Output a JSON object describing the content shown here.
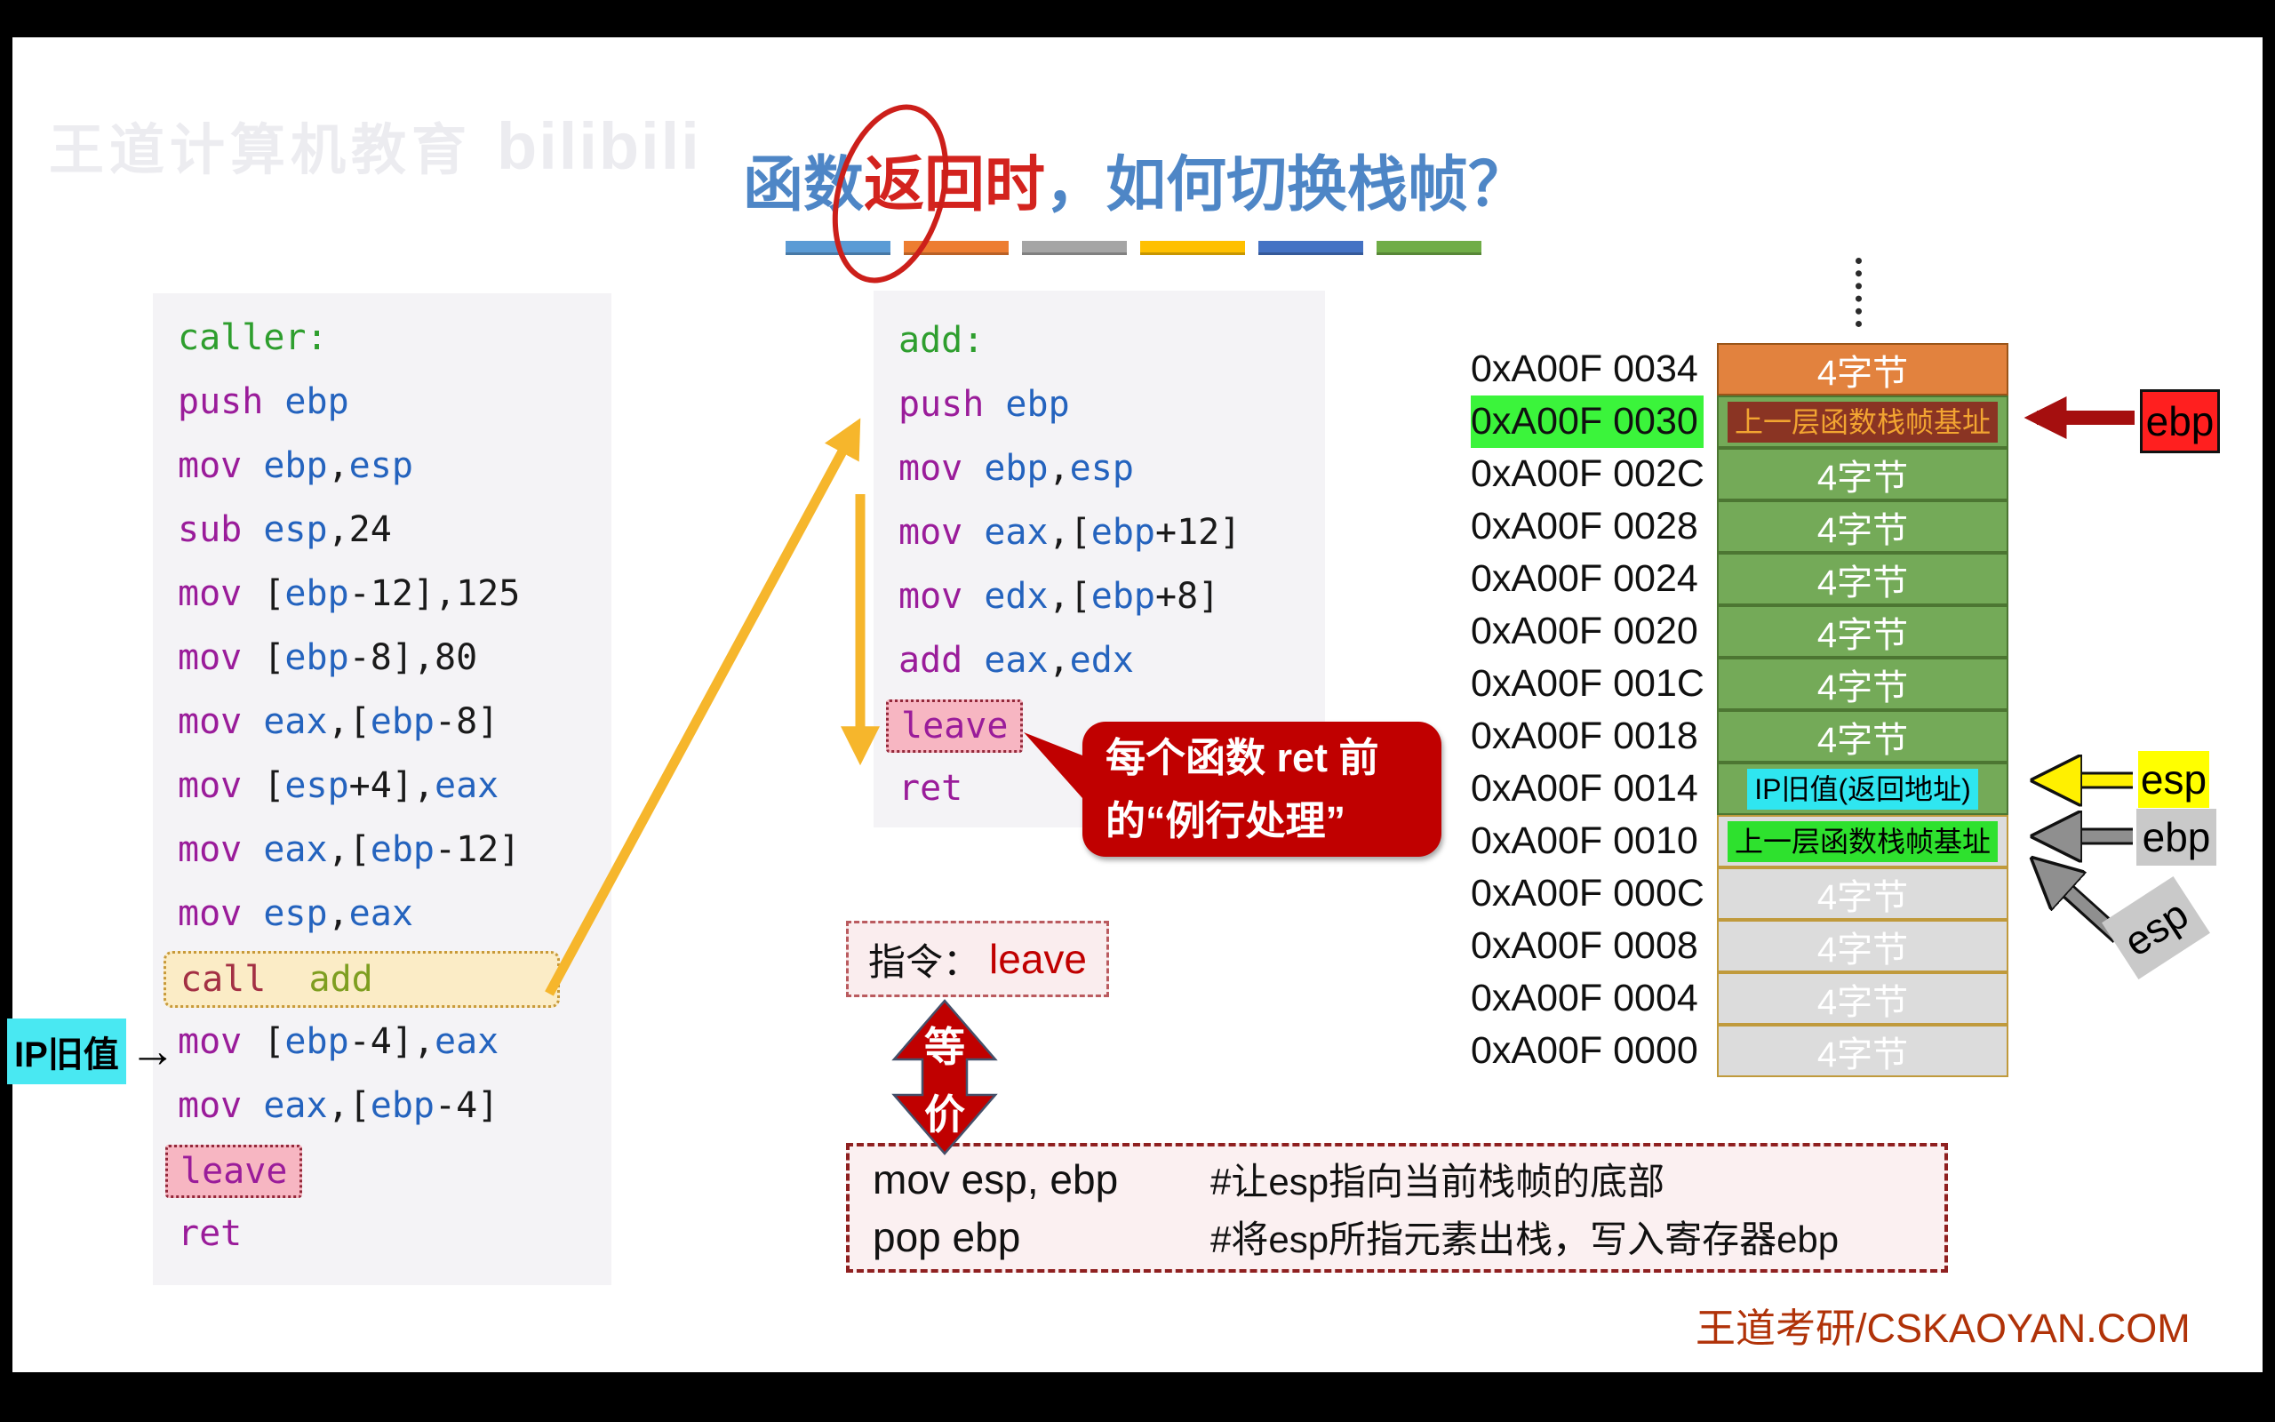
{
  "watermark": {
    "brand": "王道计算机教育",
    "logo": "bilibili"
  },
  "title": {
    "pre": "函数",
    "highlight": "返回时",
    "post": "，如何切换栈帧？"
  },
  "decor_bar_colors": [
    "#5B9BD5",
    "#ED7D31",
    "#A5A5A5",
    "#FFC000",
    "#4472C4",
    "#70AD47"
  ],
  "caller_code": {
    "lines": [
      {
        "tokens": [
          [
            "lbl",
            "caller:"
          ]
        ]
      },
      {
        "tokens": [
          [
            "k",
            "push "
          ],
          [
            "r",
            "ebp"
          ]
        ]
      },
      {
        "tokens": [
          [
            "k",
            "mov "
          ],
          [
            "r",
            "ebp"
          ],
          [
            "n",
            ","
          ],
          [
            "r",
            "esp"
          ]
        ]
      },
      {
        "tokens": [
          [
            "k",
            "sub "
          ],
          [
            "r",
            "esp"
          ],
          [
            "n",
            ",24"
          ]
        ]
      },
      {
        "tokens": [
          [
            "k",
            "mov "
          ],
          [
            "n",
            "["
          ],
          [
            "r",
            "ebp"
          ],
          [
            "n",
            "-12],125"
          ]
        ]
      },
      {
        "tokens": [
          [
            "k",
            "mov "
          ],
          [
            "n",
            "["
          ],
          [
            "r",
            "ebp"
          ],
          [
            "n",
            "-8],80"
          ]
        ]
      },
      {
        "tokens": [
          [
            "k",
            "mov "
          ],
          [
            "r",
            "eax"
          ],
          [
            "n",
            ",["
          ],
          [
            "r",
            "ebp"
          ],
          [
            "n",
            "-8]"
          ]
        ]
      },
      {
        "tokens": [
          [
            "k",
            "mov "
          ],
          [
            "n",
            "["
          ],
          [
            "r",
            "esp"
          ],
          [
            "n",
            "+4],"
          ],
          [
            "r",
            "eax"
          ]
        ]
      },
      {
        "tokens": [
          [
            "k",
            "mov "
          ],
          [
            "r",
            "eax"
          ],
          [
            "n",
            ",["
          ],
          [
            "r",
            "ebp"
          ],
          [
            "n",
            "-12]"
          ]
        ]
      },
      {
        "tokens": [
          [
            "k",
            "mov "
          ],
          [
            "r",
            "esp"
          ],
          [
            "n",
            ","
          ],
          [
            "r",
            "eax"
          ]
        ]
      },
      {
        "hl": "call",
        "tokens": [
          [
            "call",
            "call"
          ],
          [
            "n",
            "  "
          ],
          [
            "fn",
            "add"
          ]
        ]
      },
      {
        "tokens": [
          [
            "k",
            "mov "
          ],
          [
            "n",
            "["
          ],
          [
            "r",
            "ebp"
          ],
          [
            "n",
            "-4],"
          ],
          [
            "r",
            "eax"
          ]
        ]
      },
      {
        "tokens": [
          [
            "k",
            "mov "
          ],
          [
            "r",
            "eax"
          ],
          [
            "n",
            ",["
          ],
          [
            "r",
            "ebp"
          ],
          [
            "n",
            "-4]"
          ]
        ]
      },
      {
        "hl": "leave",
        "tokens": [
          [
            "k",
            "leave"
          ]
        ]
      },
      {
        "tokens": [
          [
            "k",
            "ret"
          ]
        ]
      }
    ]
  },
  "add_code": {
    "lines": [
      {
        "tokens": [
          [
            "lbl",
            "add:"
          ]
        ]
      },
      {
        "tokens": [
          [
            "k",
            "push "
          ],
          [
            "r",
            "ebp"
          ]
        ]
      },
      {
        "tokens": [
          [
            "k",
            "mov "
          ],
          [
            "r",
            "ebp"
          ],
          [
            "n",
            ","
          ],
          [
            "r",
            "esp"
          ]
        ]
      },
      {
        "tokens": [
          [
            "k",
            "mov "
          ],
          [
            "r",
            "eax"
          ],
          [
            "n",
            ",["
          ],
          [
            "r",
            "ebp"
          ],
          [
            "n",
            "+12]"
          ]
        ]
      },
      {
        "tokens": [
          [
            "k",
            "mov "
          ],
          [
            "r",
            "edx"
          ],
          [
            "n",
            ",["
          ],
          [
            "r",
            "ebp"
          ],
          [
            "n",
            "+8]"
          ]
        ]
      },
      {
        "tokens": [
          [
            "k",
            "add "
          ],
          [
            "r",
            "eax"
          ],
          [
            "n",
            ","
          ],
          [
            "r",
            "edx"
          ]
        ]
      },
      {
        "hl": "leave",
        "tokens": [
          [
            "k",
            "leave"
          ]
        ]
      },
      {
        "tokens": [
          [
            "k",
            "ret"
          ]
        ]
      }
    ]
  },
  "ip_marker": {
    "label": "IP旧值",
    "arrow": "→"
  },
  "callout": {
    "line1": "每个函数 ret 前",
    "line2": "的“例行处理”"
  },
  "instruction_box": {
    "prefix": "指令：",
    "instruction": "leave"
  },
  "equiv_arrow": {
    "char1": "等",
    "char2": "价"
  },
  "equiv_box": {
    "rows": [
      {
        "code": "mov esp, ebp",
        "comment": "#让esp指向当前栈帧的底部"
      },
      {
        "code": "pop ebp",
        "comment": "#将esp所指元素出栈，写入寄存器ebp"
      }
    ]
  },
  "memory_table": {
    "byte_label": "4字节",
    "rows": [
      {
        "address": "0xA00F 0034",
        "cell": "orange",
        "content": "bytes"
      },
      {
        "address": "0xA00F 0030",
        "address_highlight": true,
        "cell": "green",
        "content": "label",
        "label": "上一层函数栈帧基址",
        "label_style": "darkred"
      },
      {
        "address": "0xA00F 002C",
        "cell": "green",
        "content": "bytes"
      },
      {
        "address": "0xA00F 0028",
        "cell": "green",
        "content": "bytes"
      },
      {
        "address": "0xA00F 0024",
        "cell": "green",
        "content": "bytes"
      },
      {
        "address": "0xA00F 0020",
        "cell": "green",
        "content": "bytes"
      },
      {
        "address": "0xA00F 001C",
        "cell": "green",
        "content": "bytes"
      },
      {
        "address": "0xA00F 0018",
        "cell": "green",
        "content": "bytes"
      },
      {
        "address": "0xA00F 0014",
        "cell": "green",
        "content": "label",
        "label": "IP旧值(返回地址)",
        "label_style": "cyan"
      },
      {
        "address": "0xA00F 0010",
        "cell": "gray",
        "content": "label",
        "label": "上一层函数栈帧基址",
        "label_style": "green"
      },
      {
        "address": "0xA00F 000C",
        "cell": "gray",
        "content": "bytes"
      },
      {
        "address": "0xA00F 0008",
        "cell": "gray",
        "content": "bytes"
      },
      {
        "address": "0xA00F 0004",
        "cell": "gray",
        "content": "bytes"
      },
      {
        "address": "0xA00F 0000",
        "cell": "gray",
        "content": "bytes"
      }
    ]
  },
  "pointers": {
    "ebp_red": "ebp",
    "esp_yellow": "esp",
    "ebp_gray": "ebp",
    "esp_gray": "esp"
  },
  "footer": {
    "site": "王道考研/CSKAOYAN.COM"
  },
  "palette": {
    "title_blue": "#4E86C6",
    "title_red": "#D3231E",
    "callout_red": "#C00000",
    "arrow_yellow": "#F6B62C",
    "cell_orange": "#E2823E",
    "cell_green": "#74AA58",
    "cell_gray": "#DCDCDC",
    "label_cyan": "#2FE6F0",
    "label_green": "#2EE12E",
    "label_darkred_bg": "#8A3423",
    "label_darkred_text": "#F2A431",
    "address_highlight": "#3BF43B",
    "pointer_red": "#FF1F1F",
    "pointer_yellow": "#FFFF00",
    "pointer_gray": "#C9C9C9",
    "footer_red": "#B03208"
  }
}
